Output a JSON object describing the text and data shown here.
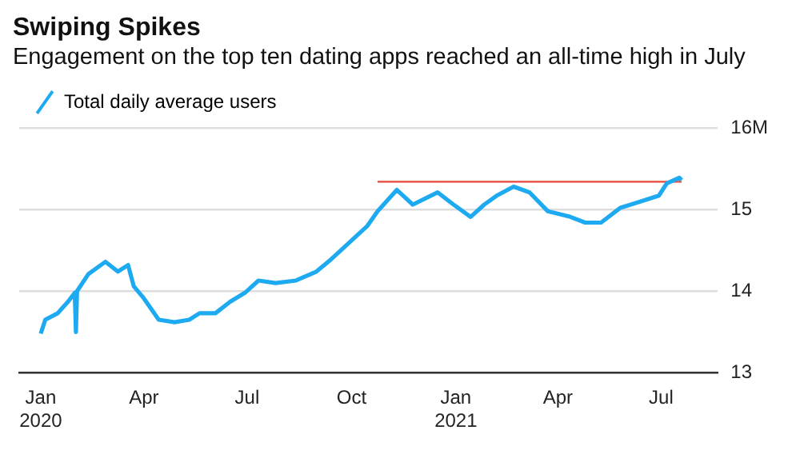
{
  "chart_data": {
    "type": "line",
    "title": "Swiping Spikes",
    "subtitle": "Engagement on the top ten dating apps reached an all-time high in July",
    "series": [
      {
        "name": "Total daily average users",
        "color": "#1eaaf1",
        "x": [
          "2020-01-01",
          "2020-01-05",
          "2020-01-16",
          "2020-01-25",
          "2020-01-31",
          "2020-02-01",
          "2020-02-02",
          "2020-02-12",
          "2020-02-27",
          "2020-03-09",
          "2020-03-18",
          "2020-03-23",
          "2020-04-01",
          "2020-04-14",
          "2020-04-28",
          "2020-05-11",
          "2020-05-20",
          "2020-06-03",
          "2020-06-16",
          "2020-06-29",
          "2020-07-11",
          "2020-07-26",
          "2020-08-13",
          "2020-08-31",
          "2020-09-13",
          "2020-10-01",
          "2020-10-15",
          "2020-10-24",
          "2020-11-10",
          "2020-11-24",
          "2020-12-16",
          "2020-12-30",
          "2021-01-14",
          "2021-01-26",
          "2021-02-06",
          "2021-02-21",
          "2021-03-07",
          "2021-03-23",
          "2021-04-12",
          "2021-04-25",
          "2021-05-09",
          "2021-05-26",
          "2021-06-13",
          "2021-06-29",
          "2021-07-06",
          "2021-07-17",
          "2021-07-19"
        ],
        "values": [
          13.48,
          13.65,
          13.73,
          13.87,
          13.98,
          13.5,
          14.0,
          14.21,
          14.36,
          14.24,
          14.32,
          14.06,
          13.91,
          13.65,
          13.62,
          13.65,
          13.73,
          13.73,
          13.87,
          13.98,
          14.13,
          14.1,
          14.13,
          14.24,
          14.39,
          14.62,
          14.8,
          14.98,
          15.24,
          15.06,
          15.21,
          15.06,
          14.91,
          15.06,
          15.17,
          15.28,
          15.21,
          14.98,
          14.91,
          14.84,
          14.84,
          15.02,
          15.1,
          15.17,
          15.32,
          15.39,
          15.36
        ]
      },
      {
        "type": "line",
        "color": "#e8453c",
        "x": [
          "2020-10-24",
          "2021-07-19"
        ],
        "values": [
          15.34,
          15.34
        ]
      }
    ],
    "xlim": [
      "2019-12-13",
      "2021-08-20"
    ],
    "xticks": [
      {
        "value": "2020-01-01",
        "label": "Jan\n2020"
      },
      {
        "value": "2020-04-01",
        "label": "Apr"
      },
      {
        "value": "2020-07-01",
        "label": "Jul"
      },
      {
        "value": "2020-10-01",
        "label": "Oct"
      },
      {
        "value": "2021-01-01",
        "label": "Jan\n2021"
      },
      {
        "value": "2021-04-01",
        "label": "Apr"
      },
      {
        "value": "2021-07-01",
        "label": "Jul"
      }
    ],
    "ylim": [
      13,
      16
    ],
    "yticks": [
      13,
      14,
      15,
      {
        "value": 16,
        "label": "16M"
      }
    ],
    "grid": "y",
    "legend": "top left",
    "marker": "none",
    "line_style": "solid"
  }
}
